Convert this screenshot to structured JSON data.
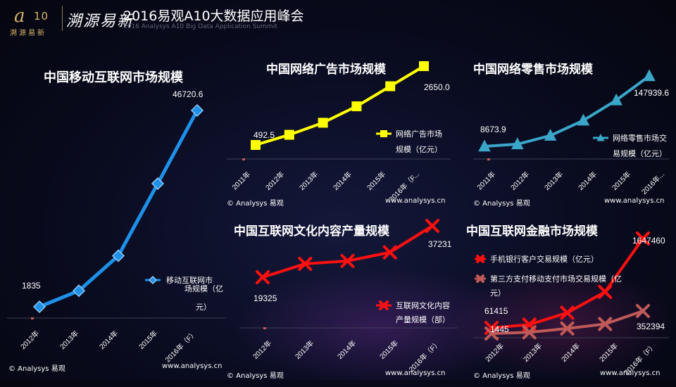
{
  "header": {
    "logo_main": "a",
    "logo_num": "10",
    "logo_sub": "溯源易新",
    "brush_text": "溯源易新",
    "title": "2016易观A10大数据应用峰会",
    "subtitle": "2016 Analysys A10 Big Data Application Summit"
  },
  "credits": {
    "copyright": "© Analysys 易观",
    "website": "www.analysys.cn"
  },
  "colors": {
    "blue": "#1e90e8",
    "yellow": "#ffff00",
    "teal": "#3aa6c8",
    "red": "#ff1010",
    "brown": "#c05a58"
  },
  "chart_data": [
    {
      "id": "mobile",
      "type": "line",
      "title": "中国移动互联网市场规模",
      "categories": [
        "2012年",
        "2013年",
        "2014年",
        "2015年",
        "2016年（F）"
      ],
      "series": [
        {
          "name": "移动互联网市场规模（亿元）",
          "values": [
            1835,
            5500,
            13500,
            30000,
            46720.6
          ],
          "color": "#1e90e8",
          "marker": "diamond"
        }
      ],
      "data_labels": [
        {
          "index": 0,
          "text": "1835"
        },
        {
          "index": 4,
          "text": "46720.6"
        }
      ],
      "legend_lines": [
        "移动互联网市",
        "场规模（亿",
        "元）"
      ],
      "ylim": [
        0,
        50000
      ]
    },
    {
      "id": "ad",
      "type": "line",
      "title": "中国网络广告市场规模",
      "categories": [
        "2011年",
        "2012年",
        "2013年",
        "2014年",
        "2015年",
        "2016年（F..."
      ],
      "series": [
        {
          "name": "网络广告市场规模（亿元）",
          "values": [
            492.5,
            770,
            1100,
            1550,
            2100,
            2650.0
          ],
          "color": "#ffff00",
          "marker": "square"
        }
      ],
      "data_labels": [
        {
          "index": 0,
          "text": "492.5"
        },
        {
          "index": 5,
          "text": "2650.0"
        }
      ],
      "legend_lines": [
        "网络广告市场",
        "规模（亿元）"
      ],
      "ylim": [
        0,
        2800
      ]
    },
    {
      "id": "retail",
      "type": "line",
      "title": "中国网络零售市场规模",
      "categories": [
        "2011年",
        "2012年",
        "2013年",
        "2014年",
        "2015年",
        "2016年..."
      ],
      "series": [
        {
          "name": "网络零售市场交易规模（亿元）",
          "values": [
            8673.9,
            13000,
            30000,
            60000,
            100000,
            147939.6
          ],
          "color": "#3aa6c8",
          "marker": "triangle"
        }
      ],
      "data_labels": [
        {
          "index": 0,
          "text": "8673.9"
        },
        {
          "index": 5,
          "text": "147939.6"
        }
      ],
      "legend_lines": [
        "网络零售市场交",
        "易规模（亿元）"
      ],
      "ylim": [
        0,
        160000
      ]
    },
    {
      "id": "culture",
      "type": "line",
      "title": "中国互联网文化内容产量规模",
      "categories": [
        "2012年",
        "2013年",
        "2014年",
        "2015年",
        "2016年（F）"
      ],
      "series": [
        {
          "name": "互联网文化内容产量规模（部）",
          "values": [
            19325,
            24000,
            25000,
            28000,
            37231
          ],
          "color": "#ff1010",
          "marker": "x"
        }
      ],
      "data_labels": [
        {
          "index": 0,
          "text": "19325"
        },
        {
          "index": 4,
          "text": "37231"
        }
      ],
      "legend_lines": [
        "互联网文化内容",
        "产量规模（部）"
      ],
      "ylim": [
        15000,
        39000
      ]
    },
    {
      "id": "finance",
      "type": "line",
      "title": "中国互联网金融市场规模",
      "categories": [
        "2012年",
        "2013年",
        "2014年",
        "2015年",
        "2016年（F）"
      ],
      "series": [
        {
          "name": "手机银行客户交易规模（亿元）",
          "values": [
            61415,
            120000,
            330000,
            700000,
            1647460
          ],
          "color": "#ff1010",
          "marker": "x"
        },
        {
          "name": "第三方支付移动支付市场交易规模（亿元）",
          "values": [
            1445,
            20000,
            80000,
            150000,
            352394
          ],
          "color": "#c05a58",
          "marker": "x"
        }
      ],
      "data_labels": [
        {
          "series": 0,
          "index": 0,
          "text": "61415"
        },
        {
          "series": 0,
          "index": 4,
          "text": "1647460"
        },
        {
          "series": 1,
          "index": 0,
          "text": "1445"
        },
        {
          "series": 1,
          "index": 4,
          "text": "352394"
        }
      ],
      "legend_lines": [
        [
          "手机银行客户交易规模（亿元）"
        ],
        [
          "第三方支付移动支付市场交易规模（亿",
          "元）"
        ]
      ],
      "ylim": [
        0,
        1800000
      ]
    }
  ]
}
